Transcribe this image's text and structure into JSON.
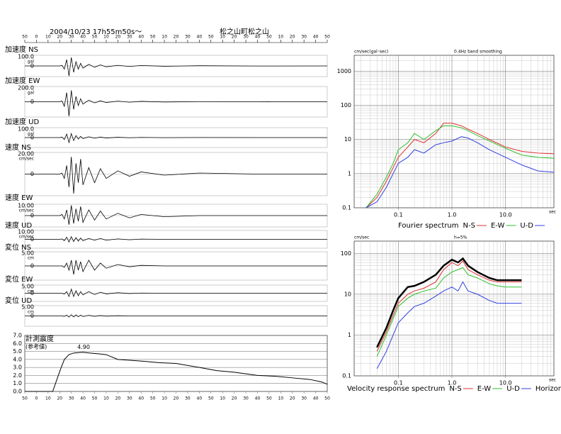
{
  "chart_data": [
    {
      "type": "waveform",
      "title": "2004/10/23  17h55m50s～",
      "subtitle": "松之山町松之山",
      "xlim": [
        0,
        260
      ],
      "xticks": [
        {
          "value": 0,
          "label": "50"
        },
        {
          "value": 10,
          "label": "0"
        },
        {
          "value": 20,
          "label": "10"
        },
        {
          "value": 30,
          "label": "20"
        },
        {
          "value": 40,
          "label": "30"
        },
        {
          "value": 50,
          "label": "40"
        },
        {
          "value": 60,
          "label": "50"
        },
        {
          "value": 70,
          "label": "10"
        },
        {
          "value": 80,
          "label": "20"
        },
        {
          "value": 90,
          "label": "30"
        },
        {
          "value": 100,
          "label": "40"
        },
        {
          "value": 110,
          "label": "50"
        },
        {
          "value": 120,
          "label": "10"
        },
        {
          "value": 130,
          "label": "20"
        },
        {
          "value": 140,
          "label": "30"
        },
        {
          "value": 150,
          "label": "40"
        },
        {
          "value": 160,
          "label": "50"
        },
        {
          "value": 170,
          "label": "10"
        },
        {
          "value": 180,
          "label": "20"
        },
        {
          "value": 190,
          "label": "30"
        },
        {
          "value": 200,
          "label": "40"
        },
        {
          "value": 210,
          "label": "50"
        },
        {
          "value": 220,
          "label": "10"
        },
        {
          "value": 230,
          "label": "20"
        },
        {
          "value": 240,
          "label": "30"
        },
        {
          "value": 250,
          "label": "40"
        },
        {
          "value": 260,
          "label": "50"
        }
      ],
      "x": [
        0,
        30,
        32,
        34,
        36,
        38,
        40,
        42,
        44,
        46,
        48,
        50,
        55,
        60,
        65,
        70,
        80,
        90,
        100,
        120,
        150,
        200,
        260
      ],
      "series": [
        {
          "name": "加速度 NS",
          "unit": "gal",
          "color": "#000000",
          "ylim": [
            -100,
            100
          ],
          "yticks": [
            0,
            {
              "value": 100,
              "label": "100.0"
            }
          ],
          "values": [
            0,
            0,
            5,
            -30,
            60,
            -95,
            80,
            -60,
            40,
            -30,
            25,
            -20,
            15,
            -12,
            10,
            -8,
            6,
            -5,
            4,
            -3,
            2,
            -1,
            0
          ]
        },
        {
          "name": "加速度 EW",
          "unit": "gal",
          "color": "#000000",
          "ylim": [
            -200,
            200
          ],
          "yticks": [
            0,
            {
              "value": 200,
              "label": "200.0"
            }
          ],
          "values": [
            0,
            0,
            10,
            -60,
            120,
            -190,
            150,
            -100,
            70,
            -50,
            40,
            -30,
            20,
            -15,
            12,
            -10,
            8,
            -6,
            5,
            -3,
            2,
            -1,
            0
          ]
        },
        {
          "name": "加速度 UD",
          "unit": "gal",
          "color": "#000000",
          "ylim": [
            -100,
            100
          ],
          "yticks": [
            0,
            {
              "value": 100,
              "label": "100.0"
            }
          ],
          "values": [
            0,
            0,
            5,
            -20,
            35,
            -50,
            40,
            -30,
            20,
            -15,
            12,
            -10,
            8,
            -6,
            5,
            -4,
            3,
            -2,
            2,
            -1,
            1,
            0,
            0
          ]
        },
        {
          "name": "速度 NS",
          "unit": "cm/sec",
          "color": "#000000",
          "ylim": [
            -20,
            20
          ],
          "yticks": [
            0,
            {
              "value": 20,
              "label": "20.00"
            }
          ],
          "values": [
            0,
            0,
            1,
            -4,
            8,
            -12,
            16,
            -18,
            10,
            -8,
            14,
            -10,
            6,
            -8,
            5,
            -4,
            3,
            -2,
            2,
            -1,
            1,
            0,
            0
          ]
        },
        {
          "name": "速度 EW",
          "unit": "cm/sec",
          "color": "#000000",
          "ylim": [
            -10,
            10
          ],
          "yticks": [
            0,
            {
              "value": 10,
              "label": "10.00"
            }
          ],
          "values": [
            0,
            0,
            1,
            -3,
            5,
            -8,
            9,
            -7,
            6,
            -5,
            8,
            -6,
            5,
            -4,
            4,
            -3,
            2,
            -2,
            1,
            -1,
            0,
            0,
            0
          ]
        },
        {
          "name": "速度 UD",
          "unit": "cm/sec",
          "color": "#000000",
          "ylim": [
            -10,
            10
          ],
          "yticks": [
            0,
            {
              "value": 10,
              "label": "10.00"
            }
          ],
          "values": [
            0,
            0,
            0.5,
            -1.5,
            2.5,
            -3,
            3,
            -2.5,
            2,
            -2,
            1.5,
            -1.5,
            1,
            -1,
            1,
            -1,
            0.5,
            -0.5,
            0.3,
            0,
            0,
            0,
            0
          ]
        },
        {
          "name": "変位 NS",
          "unit": "cm",
          "color": "#000000",
          "ylim": [
            -5,
            5
          ],
          "yticks": [
            0,
            {
              "value": 5,
              "label": "5.00"
            }
          ],
          "values": [
            0,
            0,
            0,
            -0.5,
            1,
            -1.5,
            2,
            -3,
            2,
            -1.5,
            1.5,
            -2,
            2,
            -1.5,
            1,
            -0.8,
            0.5,
            -0.3,
            0.2,
            0,
            0,
            0,
            0
          ]
        },
        {
          "name": "変位 EW",
          "unit": "cm",
          "color": "#000000",
          "ylim": [
            -5,
            5
          ],
          "yticks": [
            0,
            {
              "value": 5,
              "label": "5.00"
            }
          ],
          "values": [
            0,
            0,
            0,
            -0.5,
            1,
            -2,
            2.5,
            -2,
            1.5,
            -1.5,
            1,
            -1,
            1,
            -0.8,
            0.6,
            -0.4,
            0.3,
            -0.2,
            0.1,
            0,
            0,
            0,
            0
          ]
        },
        {
          "name": "変位 UD",
          "unit": "cm",
          "color": "#000000",
          "ylim": [
            -5,
            5
          ],
          "yticks": [
            0,
            {
              "value": 5,
              "label": "5.00"
            }
          ],
          "values": [
            0,
            0,
            0,
            -0.2,
            0.4,
            -0.6,
            0.6,
            -0.5,
            0.5,
            -0.4,
            0.4,
            -0.3,
            0.3,
            -0.2,
            0.2,
            -0.1,
            0.1,
            0,
            0,
            0,
            0,
            0,
            0
          ]
        }
      ]
    },
    {
      "type": "line",
      "title": "計測震度",
      "subtitle": "(参考値)",
      "grid": true,
      "xlim": [
        0,
        260
      ],
      "xticks": [
        {
          "value": 0,
          "label": "50"
        },
        {
          "value": 10,
          "label": "0"
        },
        {
          "value": 20,
          "label": "10"
        },
        {
          "value": 30,
          "label": "20"
        },
        {
          "value": 40,
          "label": "30"
        },
        {
          "value": 50,
          "label": "40"
        },
        {
          "value": 60,
          "label": "50"
        },
        {
          "value": 70,
          "label": "10"
        },
        {
          "value": 80,
          "label": "20"
        },
        {
          "value": 90,
          "label": "30"
        },
        {
          "value": 100,
          "label": "40"
        },
        {
          "value": 110,
          "label": "50"
        },
        {
          "value": 120,
          "label": "10"
        },
        {
          "value": 130,
          "label": "20"
        },
        {
          "value": 140,
          "label": "30"
        },
        {
          "value": 150,
          "label": "40"
        },
        {
          "value": 160,
          "label": "50"
        },
        {
          "value": 170,
          "label": "10"
        },
        {
          "value": 180,
          "label": "20"
        },
        {
          "value": 190,
          "label": "30"
        },
        {
          "value": 200,
          "label": "40"
        },
        {
          "value": 210,
          "label": "50"
        },
        {
          "value": 220,
          "label": "10"
        },
        {
          "value": 230,
          "label": "20"
        },
        {
          "value": 240,
          "label": "30"
        },
        {
          "value": 250,
          "label": "40"
        },
        {
          "value": 260,
          "label": "50"
        }
      ],
      "ylim": [
        0,
        7
      ],
      "yticks": [
        {
          "value": 0,
          "label": "0.0"
        },
        {
          "value": 1,
          "label": "1.0"
        },
        {
          "value": 2,
          "label": "2.0"
        },
        {
          "value": 3,
          "label": "3.0"
        },
        {
          "value": 4,
          "label": "4.0"
        },
        {
          "value": 5,
          "label": "5.0"
        },
        {
          "value": 6,
          "label": "6.0"
        },
        {
          "value": 7,
          "label": "7.0"
        }
      ],
      "x": [
        0,
        24,
        30,
        34,
        38,
        42,
        46,
        50,
        56,
        64,
        70,
        80,
        90,
        100,
        115,
        130,
        150,
        165,
        180,
        200,
        215,
        230,
        245,
        255,
        260
      ],
      "series": [
        {
          "name": "計測震度",
          "color": "#000000",
          "values": [
            0,
            0,
            2.5,
            4.0,
            4.6,
            4.8,
            4.85,
            4.9,
            4.8,
            4.7,
            4.6,
            4.0,
            3.9,
            3.8,
            3.6,
            3.5,
            3.0,
            2.6,
            2.4,
            2.0,
            1.9,
            1.7,
            1.5,
            1.2,
            0.9
          ]
        }
      ],
      "annotations": [
        {
          "text": "4.90",
          "x": 50,
          "y": 4.9
        }
      ]
    },
    {
      "type": "line",
      "log_scale": true,
      "grid": true,
      "y_label": "cm/sec(gal･sec)",
      "subtitle": "0.4Hz band smoothing",
      "x_label": "sec",
      "legend_title": "Fourier spectrum",
      "xlim": [
        0.015,
        80
      ],
      "ylim": [
        0.1,
        2900
      ],
      "xticks": [
        0.1,
        {
          "value": 1,
          "label": "1.0"
        },
        {
          "value": 10,
          "label": "10.0"
        }
      ],
      "yticks": [
        0.1,
        1,
        10,
        100,
        1000
      ],
      "x": [
        0.025,
        0.04,
        0.06,
        0.08,
        0.1,
        0.15,
        0.2,
        0.3,
        0.5,
        0.7,
        1,
        1.5,
        2,
        3,
        5,
        10,
        20,
        40,
        80
      ],
      "series": [
        {
          "name": "N-S",
          "color": "#e03030",
          "values": [
            0.1,
            0.2,
            0.6,
            1.5,
            3,
            6,
            10,
            8,
            15,
            30,
            30,
            25,
            20,
            15,
            10,
            6,
            4.5,
            4,
            3.8
          ]
        },
        {
          "name": "E-W",
          "color": "#30c030",
          "values": [
            0.1,
            0.25,
            0.8,
            2,
            5,
            8,
            15,
            10,
            18,
            25,
            25,
            22,
            18,
            13,
            9,
            5.5,
            3.5,
            3,
            2.8
          ]
        },
        {
          "name": "U-D",
          "color": "#3040e0",
          "values": [
            0.1,
            0.15,
            0.4,
            1,
            2,
            3,
            5,
            4,
            7,
            8,
            9,
            12,
            11,
            8,
            5,
            3,
            1.8,
            1.2,
            1.1
          ]
        }
      ]
    },
    {
      "type": "line",
      "log_scale": true,
      "grid": true,
      "y_label": "cm/sec",
      "subtitle": "h=5%",
      "x_label": "sec",
      "legend_title": "Velocity response spectrum",
      "xlim": [
        0.015,
        80
      ],
      "ylim": [
        0.1,
        200
      ],
      "xticks": [
        0.1,
        {
          "value": 1,
          "label": "1.0"
        },
        {
          "value": 10,
          "label": "10.0"
        }
      ],
      "yticks": [
        0.1,
        1,
        10,
        100
      ],
      "x": [
        0.04,
        0.06,
        0.08,
        0.1,
        0.15,
        0.2,
        0.3,
        0.5,
        0.7,
        1,
        1.3,
        1.6,
        2,
        3,
        5,
        7,
        10,
        20
      ],
      "series": [
        {
          "name": "N-S",
          "color": "#e03030",
          "width": 1,
          "values": [
            0.4,
            1.2,
            3,
            6,
            10,
            12,
            14,
            20,
            40,
            60,
            50,
            65,
            40,
            30,
            22,
            20,
            20,
            20
          ]
        },
        {
          "name": "E-W",
          "color": "#30c030",
          "width": 1,
          "values": [
            0.3,
            1,
            2.5,
            5,
            8,
            10,
            12,
            14,
            25,
            35,
            40,
            45,
            30,
            25,
            18,
            16,
            15,
            15
          ]
        },
        {
          "name": "U-D",
          "color": "#3040e0",
          "width": 1,
          "values": [
            0.15,
            0.4,
            1,
            2,
            3.5,
            5,
            6,
            9,
            12,
            15,
            12,
            20,
            12,
            10,
            7,
            6,
            6,
            6
          ]
        },
        {
          "name": "Horizon",
          "color": "#000000",
          "width": 2.5,
          "values": [
            0.5,
            1.5,
            4,
            8,
            15,
            16,
            20,
            30,
            50,
            70,
            60,
            75,
            50,
            35,
            25,
            22,
            22,
            22
          ]
        }
      ]
    }
  ]
}
